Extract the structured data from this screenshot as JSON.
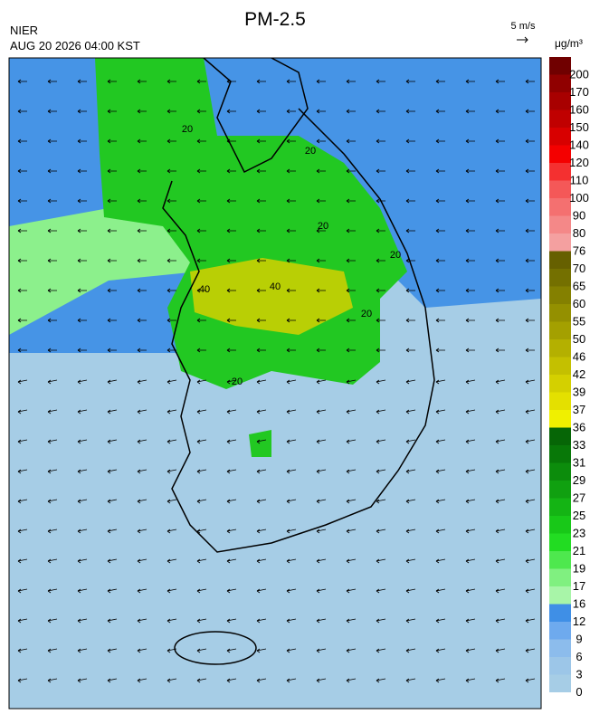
{
  "header": {
    "title": "PM-2.5",
    "agency": "NIER",
    "timestamp": "AUG 20 2026 04:00 KST",
    "vector_scale": "5 m/s"
  },
  "colorbar": {
    "unit": "μg/m³",
    "levels": [
      0,
      3,
      6,
      9,
      12,
      16,
      17,
      19,
      21,
      23,
      25,
      27,
      29,
      31,
      33,
      36,
      37,
      39,
      42,
      46,
      50,
      55,
      60,
      65,
      70,
      76,
      80,
      90,
      100,
      110,
      120,
      140,
      150,
      160,
      170,
      200
    ],
    "colors": [
      "#a6cde6",
      "#9cc6e8",
      "#8cbcec",
      "#6eaaee",
      "#3f8fe6",
      "#a8f5a8",
      "#80f080",
      "#4ee84e",
      "#22dc22",
      "#18c818",
      "#14b414",
      "#10a010",
      "#0c8c0c",
      "#087808",
      "#066606",
      "#f0f000",
      "#e4e000",
      "#d4d000",
      "#c4c000",
      "#b4b000",
      "#a4a000",
      "#949000",
      "#848000",
      "#747000",
      "#666000",
      "#f4a0a0",
      "#f48888",
      "#f47070",
      "#f45858",
      "#f43030",
      "#f40000",
      "#d80000",
      "#c00000",
      "#a80000",
      "#900000",
      "#700000"
    ]
  },
  "map": {
    "contour_labels": [
      "20",
      "20",
      "20",
      "20",
      "40",
      "40",
      "20",
      "20"
    ]
  }
}
